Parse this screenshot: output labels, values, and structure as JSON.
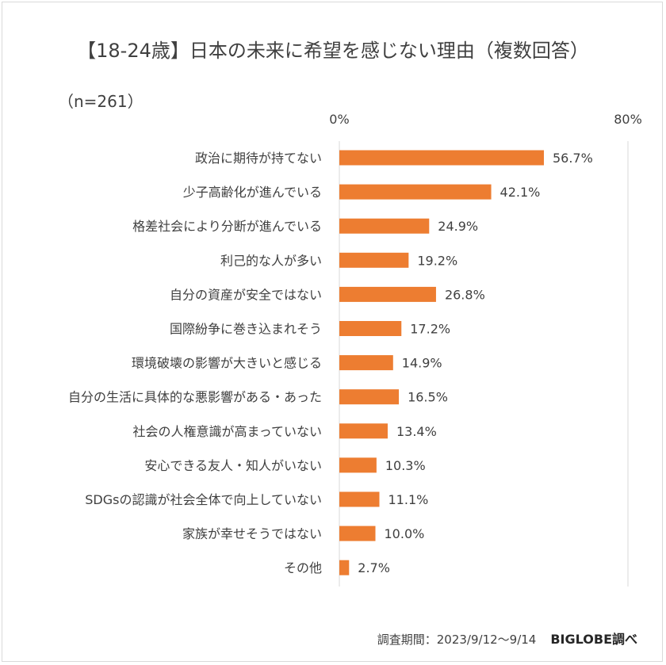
{
  "chart_data": {
    "type": "bar",
    "orientation": "horizontal",
    "title": "【18-24歳】日本の未来に希望を感じない理由（複数回答）",
    "sample_size": "（n=261）",
    "categories": [
      "政治に期待が持てない",
      "少子高齢化が進んでいる",
      "格差社会により分断が進んでいる",
      "利己的な人が多い",
      "自分の資産が安全ではない",
      "国際紛争に巻き込まれそう",
      "環境破壊の影響が大きいと感じる",
      "自分の生活に具体的な悪影響がある・あった",
      "社会の人権意識が高まっていない",
      "安心できる友人・知人がいない",
      "SDGsの認識が社会全体で向上していない",
      "家族が幸せそうではない",
      "その他"
    ],
    "values": [
      56.7,
      42.1,
      24.9,
      19.2,
      26.8,
      17.2,
      14.9,
      16.5,
      13.4,
      10.3,
      11.1,
      10.0,
      2.7
    ],
    "value_labels": [
      "56.7%",
      "42.1%",
      "24.9%",
      "19.2%",
      "26.8%",
      "17.2%",
      "14.9%",
      "16.5%",
      "13.4%",
      "10.3%",
      "11.1%",
      "10.0%",
      "2.7%"
    ],
    "xlim": [
      0,
      80
    ],
    "x_tick_labels": [
      "0%",
      "80%"
    ],
    "bar_color": "#ed7d31",
    "axis_color": "#d9d9d9",
    "grid": false,
    "legend": "none"
  },
  "footer": {
    "survey_period": "調査期間：2023/9/12～9/14",
    "source": "BIGLOBE調べ"
  }
}
